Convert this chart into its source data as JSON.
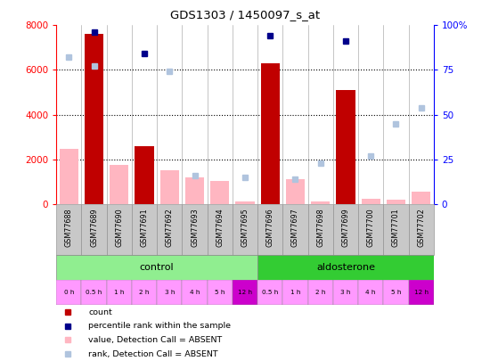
{
  "title": "GDS1303 / 1450097_s_at",
  "samples": [
    "GSM77688",
    "GSM77689",
    "GSM77690",
    "GSM77691",
    "GSM77692",
    "GSM77693",
    "GSM77694",
    "GSM77695",
    "GSM77696",
    "GSM77697",
    "GSM77698",
    "GSM77699",
    "GSM77700",
    "GSM77701",
    "GSM77702"
  ],
  "count_values": [
    null,
    7600,
    null,
    2600,
    null,
    null,
    null,
    null,
    6300,
    null,
    null,
    5100,
    null,
    null,
    null
  ],
  "count_absent_values": [
    2450,
    null,
    1750,
    null,
    1500,
    1200,
    1050,
    100,
    null,
    1100,
    100,
    null,
    250,
    200,
    550
  ],
  "rank_values_pct": [
    null,
    96,
    null,
    84,
    null,
    null,
    null,
    null,
    94,
    null,
    null,
    91,
    null,
    null,
    null
  ],
  "rank_absent_values_pct": [
    82,
    77,
    null,
    null,
    74,
    16,
    null,
    15,
    null,
    14,
    23,
    null,
    27,
    45,
    54
  ],
  "ylim_left": [
    0,
    8000
  ],
  "ylim_right": [
    0,
    100
  ],
  "yticks_left": [
    0,
    2000,
    4000,
    6000,
    8000
  ],
  "yticks_right": [
    0,
    25,
    50,
    75,
    100
  ],
  "agent_control_count": 8,
  "agent_aldosterone_count": 7,
  "time_labels": [
    "0 h",
    "0.5 h",
    "1 h",
    "2 h",
    "3 h",
    "4 h",
    "5 h",
    "12 h",
    "0.5 h",
    "1 h",
    "2 h",
    "3 h",
    "4 h",
    "5 h",
    "12 h"
  ],
  "color_count": "#C00000",
  "color_rank": "#00008B",
  "color_count_absent": "#FFB6C1",
  "color_rank_absent": "#B0C4DE",
  "color_control_light": "#90EE90",
  "color_aldosterone": "#33CC33",
  "color_time_light": "#FF99FF",
  "color_time_dark": "#CC00CC",
  "color_header": "#C8C8C8",
  "time_dark_indices": [
    7,
    14
  ],
  "background_color": "#ffffff"
}
